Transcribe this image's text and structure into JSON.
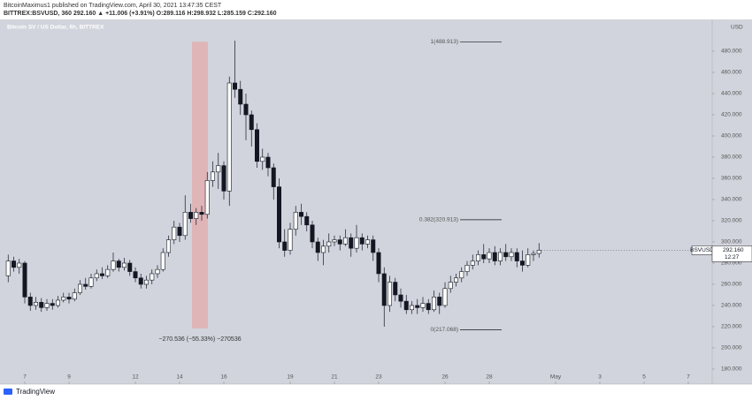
{
  "header": {
    "publisher": "BitcoinMaximus1 published on TradingView.com, April 30, 2021 13:47:35 CEST",
    "quote": "BITTREX:BSVUSD, 360  292.160  ▲ +11.006 (+3.91%)  O:289.116  H:298.932  L:285.159  C:292.160"
  },
  "footer": {
    "brand": "TradingView"
  },
  "chart_data": {
    "type": "candlestick",
    "title": "Bitcoin SV / US Dollar, 6h, BITTREX",
    "currency": "USD",
    "symbol": "BSVUSD",
    "last_price": 292.16,
    "last_price_label": "292.160",
    "countdown": "12:27",
    "up_color": "#ffffff",
    "down_color": "#131722",
    "outline_color": "#131722",
    "background": "#d1d4dc",
    "grid": false,
    "xlim": [
      5.88,
      38.08
    ],
    "xticks": [
      7,
      9,
      12,
      14,
      16,
      19,
      21,
      23,
      26,
      28,
      {
        "value": 31,
        "label": "May"
      },
      {
        "value": 33,
        "label": "3"
      },
      {
        "value": 35,
        "label": "5"
      },
      {
        "value": 37,
        "label": "7"
      }
    ],
    "ylim": [
      165.8,
      510
    ],
    "yticks": [
      {
        "value": 180,
        "label": "180.000"
      },
      {
        "value": 200,
        "label": "200.000"
      },
      {
        "value": 220,
        "label": "220.000"
      },
      {
        "value": 240,
        "label": "240.000"
      },
      {
        "value": 260,
        "label": "260.000"
      },
      {
        "value": 280,
        "label": "280.000"
      },
      {
        "value": 300,
        "label": "300.000"
      },
      {
        "value": 320,
        "label": "320.000"
      },
      {
        "value": 340,
        "label": "340.000"
      },
      {
        "value": 360,
        "label": "360.000"
      },
      {
        "value": 380,
        "label": "380.000"
      },
      {
        "value": 400,
        "label": "400.000"
      },
      {
        "value": 420,
        "label": "420.000"
      },
      {
        "value": 440,
        "label": "440.000"
      },
      {
        "value": 460,
        "label": "460.000"
      },
      {
        "value": 480,
        "label": "480.000"
      }
    ],
    "x": [
      6.25,
      6.5,
      6.75,
      7,
      7.25,
      7.5,
      7.75,
      8,
      8.25,
      8.5,
      8.75,
      9,
      9.25,
      9.5,
      9.75,
      10,
      10.25,
      10.5,
      10.75,
      11,
      11.25,
      11.5,
      11.75,
      12,
      12.25,
      12.5,
      12.75,
      13,
      13.25,
      13.5,
      13.75,
      14,
      14.25,
      14.5,
      14.75,
      15,
      15.25,
      15.5,
      15.75,
      16,
      16.25,
      16.5,
      16.75,
      17,
      17.25,
      17.5,
      17.75,
      18,
      18.25,
      18.5,
      18.75,
      19,
      19.25,
      19.5,
      19.75,
      20,
      20.25,
      20.5,
      20.75,
      21,
      21.25,
      21.5,
      21.75,
      22,
      22.25,
      22.5,
      22.75,
      23,
      23.25,
      23.5,
      23.75,
      24,
      24.25,
      24.5,
      24.75,
      25,
      25.25,
      25.5,
      25.75,
      26,
      26.25,
      26.5,
      26.75,
      27,
      27.25,
      27.5,
      27.75,
      28,
      28.25,
      28.5,
      28.75,
      29,
      29.25,
      29.5,
      29.75,
      30,
      30.25
    ],
    "ohlc": [
      [
        268,
        288,
        262,
        282
      ],
      [
        282,
        286,
        272,
        276
      ],
      [
        276,
        284,
        270,
        280
      ],
      [
        280,
        282,
        242,
        248
      ],
      [
        248,
        252,
        235,
        240
      ],
      [
        240,
        248,
        236,
        243
      ],
      [
        243,
        247,
        234,
        238
      ],
      [
        238,
        246,
        235,
        242
      ],
      [
        242,
        246,
        236,
        240
      ],
      [
        240,
        249,
        238,
        245
      ],
      [
        245,
        252,
        243,
        248
      ],
      [
        248,
        252,
        242,
        246
      ],
      [
        246,
        256,
        244,
        252
      ],
      [
        252,
        264,
        250,
        260
      ],
      [
        260,
        266,
        255,
        258
      ],
      [
        258,
        270,
        256,
        266
      ],
      [
        266,
        274,
        263,
        270
      ],
      [
        270,
        276,
        265,
        268
      ],
      [
        268,
        278,
        266,
        274
      ],
      [
        274,
        290,
        272,
        282
      ],
      [
        282,
        284,
        272,
        276
      ],
      [
        276,
        285,
        273,
        280
      ],
      [
        280,
        283,
        268,
        272
      ],
      [
        272,
        276,
        262,
        266
      ],
      [
        266,
        270,
        256,
        260
      ],
      [
        260,
        268,
        256,
        264
      ],
      [
        264,
        274,
        260,
        270
      ],
      [
        270,
        278,
        266,
        274
      ],
      [
        274,
        294,
        272,
        290
      ],
      [
        290,
        306,
        286,
        302
      ],
      [
        302,
        320,
        298,
        314
      ],
      [
        314,
        318,
        300,
        306
      ],
      [
        306,
        344,
        302,
        328
      ],
      [
        328,
        336,
        318,
        322
      ],
      [
        322,
        332,
        316,
        328
      ],
      [
        328,
        334,
        320,
        326
      ],
      [
        326,
        366,
        322,
        358
      ],
      [
        358,
        376,
        352,
        366
      ],
      [
        366,
        384,
        350,
        372
      ],
      [
        372,
        376,
        340,
        348
      ],
      [
        348,
        456,
        334,
        450
      ],
      [
        450,
        490,
        436,
        444
      ],
      [
        444,
        452,
        420,
        430
      ],
      [
        430,
        440,
        396,
        420
      ],
      [
        420,
        424,
        390,
        406
      ],
      [
        406,
        412,
        370,
        376
      ],
      [
        376,
        388,
        368,
        380
      ],
      [
        380,
        384,
        362,
        370
      ],
      [
        370,
        374,
        340,
        352
      ],
      [
        352,
        360,
        294,
        300
      ],
      [
        300,
        312,
        286,
        292
      ],
      [
        292,
        318,
        288,
        312
      ],
      [
        312,
        334,
        306,
        328
      ],
      [
        328,
        336,
        316,
        324
      ],
      [
        324,
        328,
        310,
        316
      ],
      [
        316,
        320,
        294,
        300
      ],
      [
        300,
        304,
        282,
        290
      ],
      [
        290,
        302,
        278,
        296
      ],
      [
        296,
        308,
        290,
        300
      ],
      [
        300,
        306,
        296,
        302
      ],
      [
        302,
        306,
        292,
        298
      ],
      [
        298,
        312,
        296,
        304
      ],
      [
        304,
        308,
        286,
        294
      ],
      [
        294,
        316,
        290,
        304
      ],
      [
        304,
        308,
        292,
        298
      ],
      [
        298,
        306,
        294,
        302
      ],
      [
        302,
        306,
        282,
        290
      ],
      [
        290,
        294,
        262,
        270
      ],
      [
        270,
        276,
        220,
        240
      ],
      [
        240,
        268,
        234,
        262
      ],
      [
        262,
        266,
        244,
        250
      ],
      [
        250,
        256,
        238,
        244
      ],
      [
        244,
        250,
        232,
        236
      ],
      [
        236,
        244,
        232,
        240
      ],
      [
        240,
        246,
        232,
        238
      ],
      [
        238,
        248,
        234,
        242
      ],
      [
        242,
        246,
        232,
        236
      ],
      [
        236,
        254,
        234,
        248
      ],
      [
        248,
        252,
        232,
        240
      ],
      [
        240,
        262,
        238,
        256
      ],
      [
        256,
        268,
        252,
        262
      ],
      [
        262,
        270,
        258,
        266
      ],
      [
        266,
        276,
        262,
        272
      ],
      [
        272,
        282,
        268,
        278
      ],
      [
        278,
        288,
        274,
        282
      ],
      [
        282,
        292,
        278,
        288
      ],
      [
        288,
        298,
        280,
        284
      ],
      [
        284,
        294,
        280,
        290
      ],
      [
        290,
        296,
        278,
        282
      ],
      [
        282,
        294,
        278,
        290
      ],
      [
        290,
        298,
        282,
        286
      ],
      [
        286,
        294,
        282,
        290
      ],
      [
        290,
        294,
        276,
        282
      ],
      [
        282,
        292,
        272,
        278
      ],
      [
        278,
        294,
        276,
        288
      ],
      [
        288,
        292,
        282,
        289.116
      ],
      [
        289.116,
        298.932,
        285.159,
        292.16
      ]
    ],
    "fib_levels": [
      {
        "label": "1(488.913)",
        "value": 488.913
      },
      {
        "label": "0.382(320.913)",
        "value": 320.913
      },
      {
        "label": "0(217.068)",
        "value": 217.068
      }
    ],
    "fib_x": [
      26.68,
      28.56
    ],
    "measure": {
      "x": [
        14.56,
        15.28
      ],
      "y": [
        218.377,
        488.913
      ],
      "label": "−270.536 (−55.33%) −270536",
      "color": "#e8a0a0"
    }
  }
}
